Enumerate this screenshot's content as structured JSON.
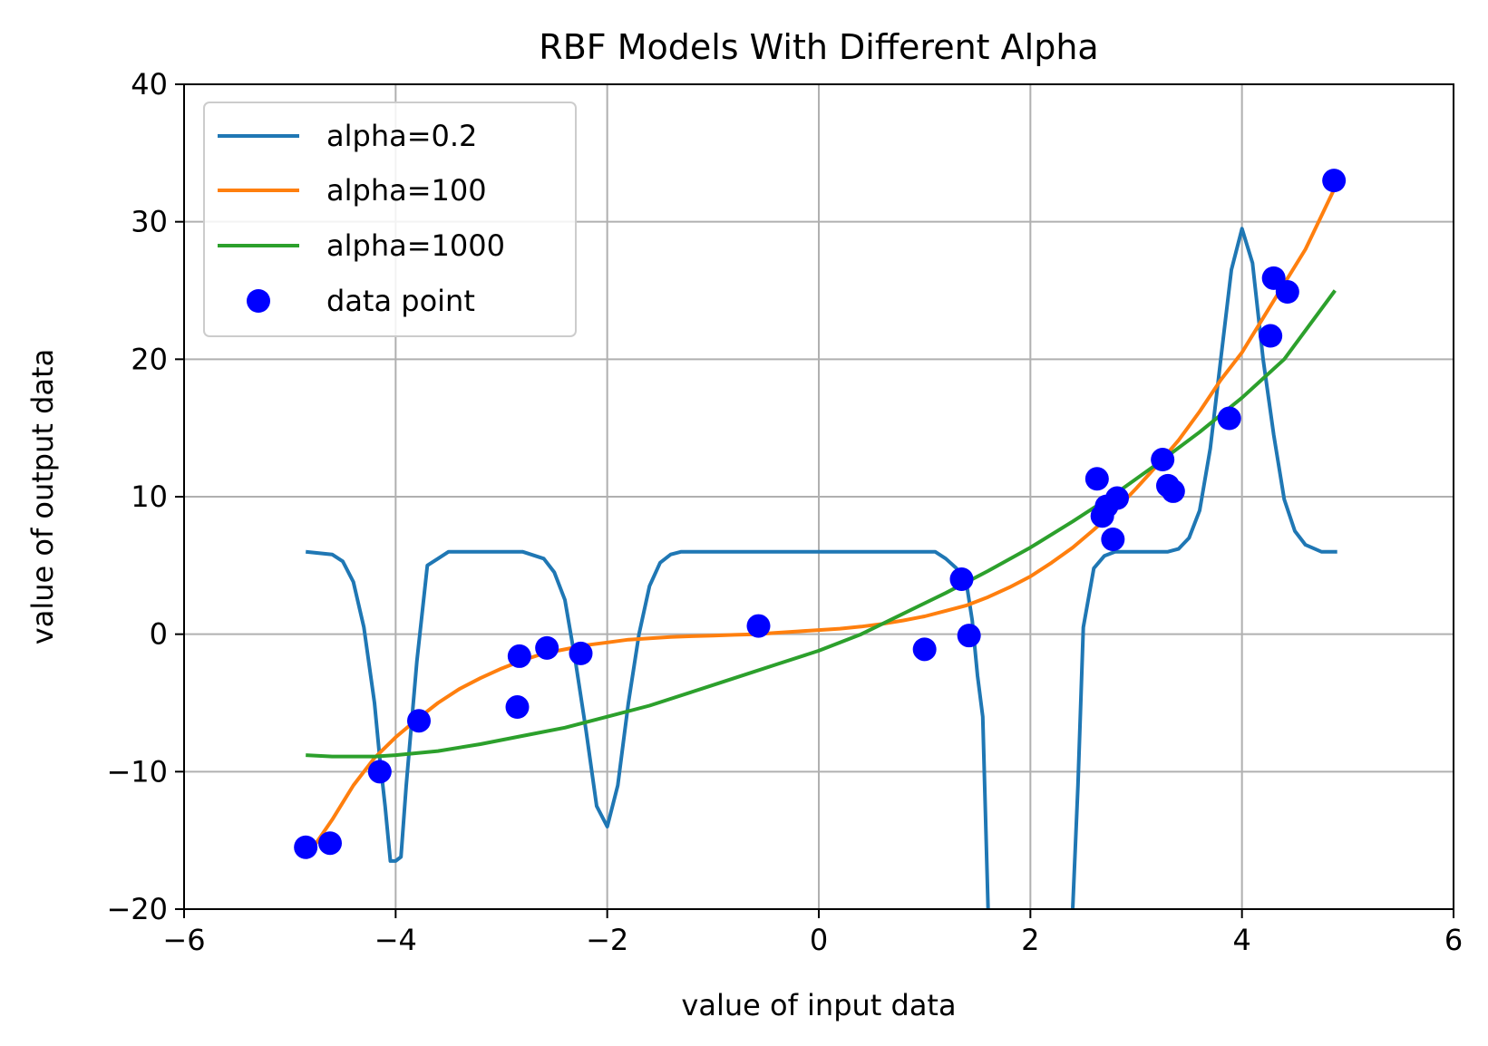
{
  "chart_data": {
    "type": "line",
    "title": "RBF Models With Different Alpha",
    "xlabel": "value of input data",
    "ylabel": "value of output data",
    "xlim": [
      -6,
      6
    ],
    "ylim": [
      -20,
      40
    ],
    "xticks": [
      -6,
      -4,
      -2,
      0,
      2,
      4,
      6
    ],
    "yticks": [
      -20,
      -10,
      0,
      10,
      20,
      30,
      40
    ],
    "xtick_labels": [
      "−6",
      "−4",
      "−2",
      "0",
      "2",
      "4",
      "6"
    ],
    "ytick_labels": [
      "−20",
      "−10",
      "0",
      "10",
      "20",
      "30",
      "40"
    ],
    "grid": true,
    "legend_position": "upper left",
    "series": [
      {
        "name": "alpha=0.2",
        "color": "#1f77b4",
        "x": [
          -4.85,
          -4.6,
          -4.5,
          -4.4,
          -4.3,
          -4.2,
          -4.15,
          -4.1,
          -4.05,
          -4.0,
          -3.95,
          -3.9,
          -3.8,
          -3.7,
          -3.6,
          -3.5,
          -3.4,
          -3.3,
          -3.2,
          -3.0,
          -2.8,
          -2.6,
          -2.5,
          -2.4,
          -2.3,
          -2.2,
          -2.1,
          -2.0,
          -1.9,
          -1.8,
          -1.7,
          -1.6,
          -1.5,
          -1.4,
          -1.3,
          -1.2,
          1.1,
          1.2,
          1.3,
          1.4,
          1.45,
          1.5,
          1.55,
          1.6,
          1.61,
          2.38,
          2.4,
          2.45,
          2.5,
          2.6,
          2.7,
          2.8,
          3.0,
          3.2,
          3.3,
          3.4,
          3.5,
          3.6,
          3.7,
          3.8,
          3.9,
          4.0,
          4.1,
          4.2,
          4.3,
          4.4,
          4.5,
          4.6,
          4.75,
          4.9
        ],
        "y": [
          6,
          5.8,
          5.3,
          3.8,
          0.5,
          -5,
          -9,
          -12.5,
          -16.5,
          -16.5,
          -16.2,
          -11,
          -2,
          5,
          5.5,
          6,
          6,
          6,
          6,
          6,
          6,
          5.5,
          4.5,
          2.5,
          -2,
          -7,
          -12.5,
          -14,
          -11,
          -5,
          0,
          3.5,
          5.2,
          5.8,
          6,
          6,
          6,
          5.5,
          4.8,
          3.5,
          1,
          -3,
          -6,
          -20,
          -20.5,
          -20.5,
          -20,
          -11,
          0.5,
          4.8,
          5.7,
          6,
          6,
          6,
          6,
          6.2,
          7,
          9,
          13.5,
          20,
          26.5,
          29.5,
          27,
          20,
          14.5,
          9.8,
          7.5,
          6.5,
          6,
          6
        ]
      },
      {
        "name": "alpha=100",
        "color": "#ff7f0e",
        "x": [
          -4.85,
          -4.6,
          -4.4,
          -4.2,
          -4.0,
          -3.8,
          -3.6,
          -3.4,
          -3.2,
          -3.0,
          -2.8,
          -2.6,
          -2.4,
          -2.2,
          -2.0,
          -1.8,
          -1.6,
          -1.4,
          -1.2,
          -1.0,
          -0.8,
          -0.6,
          -0.4,
          -0.2,
          0.0,
          0.2,
          0.4,
          0.6,
          0.8,
          1.0,
          1.2,
          1.4,
          1.6,
          1.8,
          2.0,
          2.2,
          2.4,
          2.6,
          2.8,
          3.0,
          3.2,
          3.4,
          3.6,
          3.8,
          4.0,
          4.2,
          4.4,
          4.6,
          4.88
        ],
        "y": [
          -16.3,
          -13.5,
          -11,
          -9,
          -7.5,
          -6.2,
          -5,
          -4,
          -3.2,
          -2.5,
          -1.9,
          -1.4,
          -1.1,
          -0.8,
          -0.6,
          -0.4,
          -0.3,
          -0.2,
          -0.15,
          -0.1,
          -0.05,
          0.0,
          0.1,
          0.2,
          0.3,
          0.4,
          0.55,
          0.75,
          1.0,
          1.3,
          1.7,
          2.1,
          2.7,
          3.4,
          4.2,
          5.2,
          6.3,
          7.6,
          9.0,
          10.6,
          12.3,
          14.1,
          16.2,
          18.5,
          20.5,
          23,
          25.5,
          28,
          32.5
        ]
      },
      {
        "name": "alpha=1000",
        "color": "#2ca02c",
        "x": [
          -4.85,
          -4.6,
          -4.4,
          -4.2,
          -4.0,
          -3.6,
          -3.2,
          -2.8,
          -2.4,
          -2.0,
          -1.6,
          -1.2,
          -0.8,
          -0.4,
          0.0,
          0.4,
          0.8,
          1.2,
          1.6,
          2.0,
          2.4,
          2.8,
          3.2,
          3.6,
          4.0,
          4.4,
          4.88
        ],
        "y": [
          -8.8,
          -8.9,
          -8.9,
          -8.9,
          -8.8,
          -8.5,
          -8.0,
          -7.4,
          -6.8,
          -6.0,
          -5.2,
          -4.2,
          -3.2,
          -2.2,
          -1.2,
          0.0,
          1.5,
          3.0,
          4.6,
          6.3,
          8.2,
          10.2,
          12.4,
          14.7,
          17.2,
          20.0,
          25.0
        ]
      }
    ],
    "scatter": {
      "name": "data point",
      "color": "#0000ff",
      "x": [
        -4.85,
        -4.62,
        -4.15,
        -3.78,
        -2.85,
        -2.83,
        -2.57,
        -2.25,
        -0.57,
        1.0,
        1.35,
        1.42,
        2.63,
        2.68,
        2.72,
        2.78,
        2.82,
        3.25,
        3.3,
        3.35,
        3.88,
        4.27,
        4.3,
        4.43,
        4.87
      ],
      "y": [
        -15.5,
        -15.2,
        -10.0,
        -6.3,
        -5.3,
        -1.6,
        -1.0,
        -1.4,
        0.6,
        -1.1,
        4.0,
        -0.1,
        11.3,
        8.6,
        9.3,
        6.9,
        9.9,
        12.7,
        10.8,
        10.4,
        15.7,
        21.7,
        25.9,
        24.9,
        33.0
      ]
    }
  }
}
